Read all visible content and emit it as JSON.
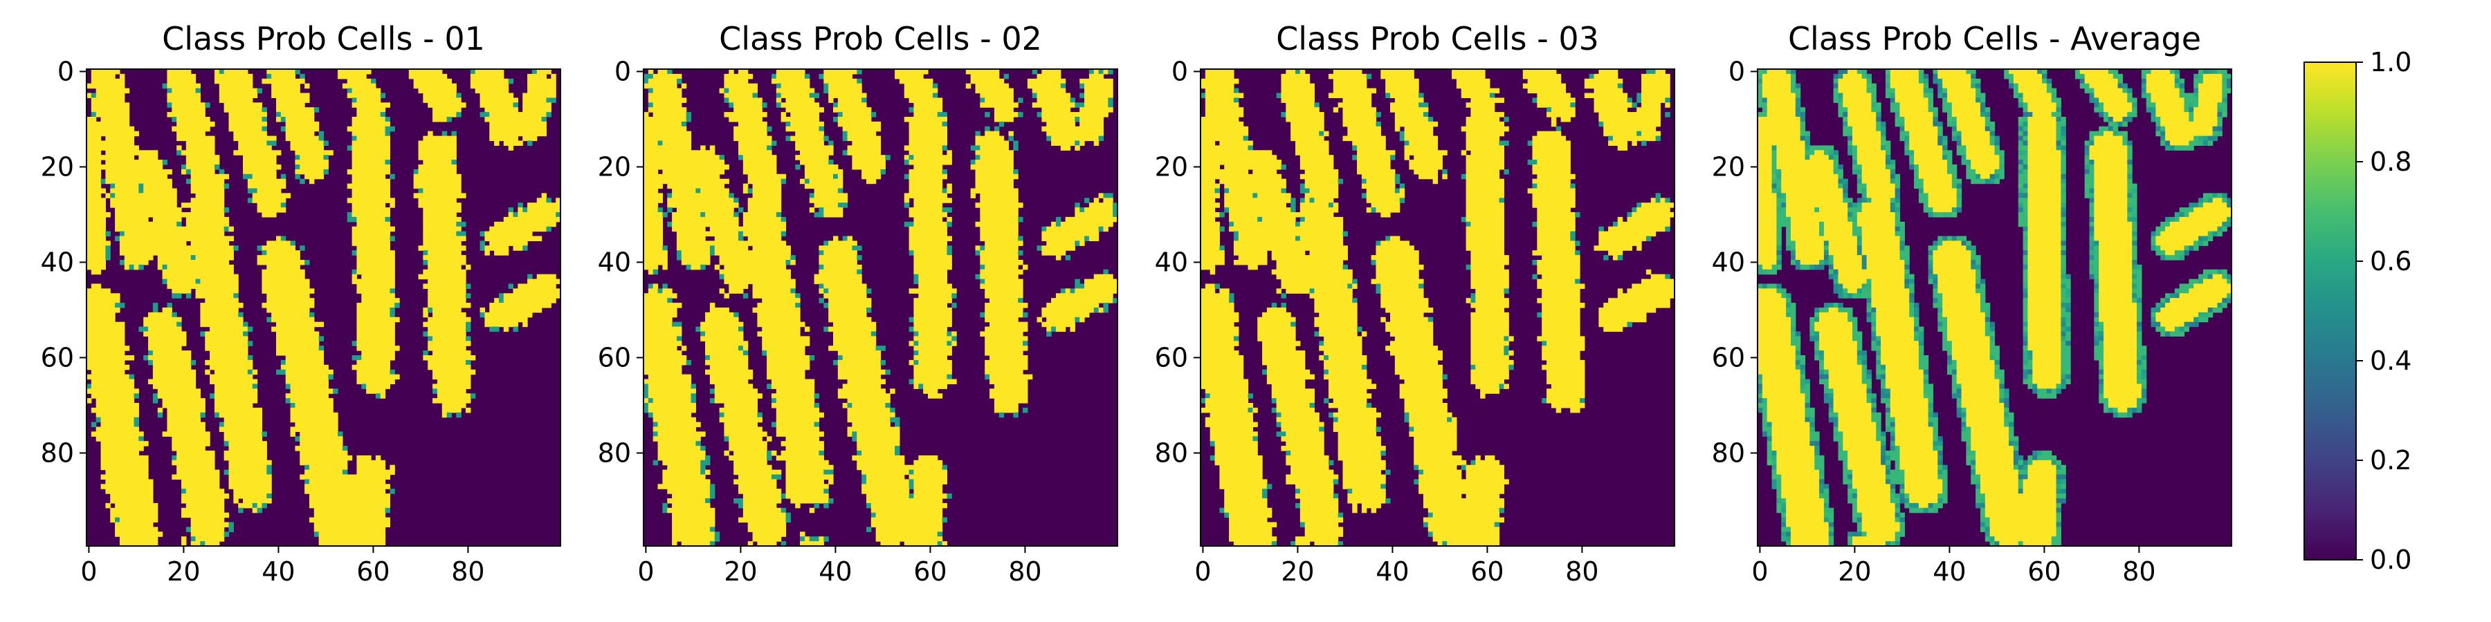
{
  "figure": {
    "colormap": "viridis",
    "colors": {
      "low": "#440154",
      "high": "#fde725",
      "mid_teal": "#21918c",
      "axis": "#000000",
      "background": "#ffffff"
    }
  },
  "chart_data": [
    {
      "type": "heatmap",
      "title": "Class Prob Cells - 01",
      "xlabel": "",
      "ylabel": "",
      "xlim": [
        0,
        100
      ],
      "ylim": [
        100,
        0
      ],
      "x_ticks": [
        "0",
        "20",
        "40",
        "60",
        "80"
      ],
      "y_ticks": [
        "0",
        "20",
        "40",
        "60",
        "80"
      ],
      "grid": false,
      "edge_noise": 0.06,
      "description_values": "binary class probability map: 1.0 inside cell segments, 0.0 background",
      "cells": [
        {
          "x1": 4,
          "y1": 3,
          "x2": 11,
          "y2": 38,
          "r": 3.6
        },
        {
          "x1": 20,
          "y1": 3,
          "x2": 26,
          "y2": 26,
          "r": 3.4
        },
        {
          "x1": 31,
          "y1": 2,
          "x2": 39,
          "y2": 27,
          "r": 3.6
        },
        {
          "x1": 41,
          "y1": 0,
          "x2": 48,
          "y2": 20,
          "r": 3.5
        },
        {
          "x1": 56,
          "y1": 0,
          "x2": 60,
          "y2": 8,
          "r": 3.2
        },
        {
          "x1": 71,
          "y1": 0,
          "x2": 76,
          "y2": 8,
          "r": 3.2
        },
        {
          "x1": 85,
          "y1": 3,
          "x2": 89,
          "y2": 13,
          "r": 3.6
        },
        {
          "x1": 96,
          "y1": 3,
          "x2": 94,
          "y2": 12,
          "r": 3.0
        },
        {
          "x1": 13,
          "y1": 20,
          "x2": 20,
          "y2": 44,
          "r": 3.5
        },
        {
          "x1": 1,
          "y1": 12,
          "x2": 2,
          "y2": 40,
          "r": 2.6
        },
        {
          "x1": 25,
          "y1": 31,
          "x2": 35,
          "y2": 88,
          "r": 4.4
        },
        {
          "x1": 41,
          "y1": 40,
          "x2": 53,
          "y2": 96,
          "r": 4.6
        },
        {
          "x1": 60,
          "y1": 12,
          "x2": 61,
          "y2": 64,
          "r": 4.0
        },
        {
          "x1": 74,
          "y1": 17,
          "x2": 77,
          "y2": 68,
          "r": 4.2
        },
        {
          "x1": 2,
          "y1": 50,
          "x2": 11,
          "y2": 98,
          "r": 4.6
        },
        {
          "x1": 16,
          "y1": 54,
          "x2": 26,
          "y2": 96,
          "r": 4.2
        },
        {
          "x1": 60,
          "y1": 85,
          "x2": 59,
          "y2": 99,
          "r": 4.0
        },
        {
          "x1": 87,
          "y1": 36,
          "x2": 97,
          "y2": 30,
          "r": 3.4
        },
        {
          "x1": 87,
          "y1": 52,
          "x2": 97,
          "y2": 46,
          "r": 3.4
        },
        {
          "x1": 21,
          "y1": 99,
          "x2": 24,
          "y2": 99,
          "r": 1.4
        }
      ]
    },
    {
      "type": "heatmap",
      "title": "Class Prob Cells - 02",
      "xlabel": "",
      "ylabel": "",
      "xlim": [
        0,
        100
      ],
      "ylim": [
        100,
        0
      ],
      "x_ticks": [
        "0",
        "20",
        "40",
        "60",
        "80"
      ],
      "y_ticks": [
        "0",
        "20",
        "40",
        "60",
        "80"
      ],
      "grid": false,
      "edge_noise": 0.07,
      "description_values": "binary class probability map: 1.0 inside cell segments, 0.0 background",
      "cells": [
        {
          "x1": 4,
          "y1": 3,
          "x2": 11,
          "y2": 38,
          "r": 3.6
        },
        {
          "x1": 20,
          "y1": 3,
          "x2": 26,
          "y2": 26,
          "r": 3.4
        },
        {
          "x1": 31,
          "y1": 2,
          "x2": 39,
          "y2": 27,
          "r": 3.6
        },
        {
          "x1": 41,
          "y1": 0,
          "x2": 48,
          "y2": 20,
          "r": 3.5
        },
        {
          "x1": 56,
          "y1": 0,
          "x2": 60,
          "y2": 8,
          "r": 3.2
        },
        {
          "x1": 71,
          "y1": 0,
          "x2": 76,
          "y2": 8,
          "r": 3.2
        },
        {
          "x1": 85,
          "y1": 3,
          "x2": 89,
          "y2": 13,
          "r": 3.6
        },
        {
          "x1": 96,
          "y1": 3,
          "x2": 94,
          "y2": 12,
          "r": 3.0
        },
        {
          "x1": 13,
          "y1": 20,
          "x2": 20,
          "y2": 44,
          "r": 3.5
        },
        {
          "x1": 1,
          "y1": 12,
          "x2": 2,
          "y2": 40,
          "r": 2.6
        },
        {
          "x1": 25,
          "y1": 31,
          "x2": 35,
          "y2": 88,
          "r": 4.4
        },
        {
          "x1": 41,
          "y1": 40,
          "x2": 53,
          "y2": 96,
          "r": 4.6
        },
        {
          "x1": 60,
          "y1": 12,
          "x2": 61,
          "y2": 64,
          "r": 4.0
        },
        {
          "x1": 74,
          "y1": 17,
          "x2": 77,
          "y2": 68,
          "r": 4.2
        },
        {
          "x1": 2,
          "y1": 50,
          "x2": 11,
          "y2": 98,
          "r": 4.6
        },
        {
          "x1": 16,
          "y1": 54,
          "x2": 26,
          "y2": 96,
          "r": 4.2
        },
        {
          "x1": 60,
          "y1": 85,
          "x2": 59,
          "y2": 99,
          "r": 4.0
        },
        {
          "x1": 87,
          "y1": 36,
          "x2": 97,
          "y2": 30,
          "r": 3.4
        },
        {
          "x1": 87,
          "y1": 52,
          "x2": 97,
          "y2": 46,
          "r": 3.4
        },
        {
          "x1": 35,
          "y1": 99,
          "x2": 37,
          "y2": 99,
          "r": 1.4
        }
      ]
    },
    {
      "type": "heatmap",
      "title": "Class Prob Cells - 03",
      "xlabel": "",
      "ylabel": "",
      "xlim": [
        0,
        100
      ],
      "ylim": [
        100,
        0
      ],
      "x_ticks": [
        "0",
        "20",
        "40",
        "60",
        "80"
      ],
      "y_ticks": [
        "0",
        "20",
        "40",
        "60",
        "80"
      ],
      "grid": false,
      "edge_noise": 0.05,
      "description_values": "binary class probability map: 1.0 inside cell segments, 0.0 background",
      "cells": [
        {
          "x1": 4,
          "y1": 3,
          "x2": 11,
          "y2": 38,
          "r": 3.6
        },
        {
          "x1": 20,
          "y1": 3,
          "x2": 26,
          "y2": 26,
          "r": 3.4
        },
        {
          "x1": 31,
          "y1": 2,
          "x2": 39,
          "y2": 27,
          "r": 3.6
        },
        {
          "x1": 41,
          "y1": 0,
          "x2": 48,
          "y2": 20,
          "r": 3.5
        },
        {
          "x1": 56,
          "y1": 0,
          "x2": 60,
          "y2": 8,
          "r": 3.2
        },
        {
          "x1": 71,
          "y1": 0,
          "x2": 76,
          "y2": 8,
          "r": 3.2
        },
        {
          "x1": 85,
          "y1": 3,
          "x2": 89,
          "y2": 13,
          "r": 3.6
        },
        {
          "x1": 96,
          "y1": 3,
          "x2": 94,
          "y2": 12,
          "r": 3.0
        },
        {
          "x1": 13,
          "y1": 20,
          "x2": 20,
          "y2": 44,
          "r": 3.5
        },
        {
          "x1": 1,
          "y1": 12,
          "x2": 2,
          "y2": 40,
          "r": 2.6
        },
        {
          "x1": 25,
          "y1": 31,
          "x2": 35,
          "y2": 88,
          "r": 4.4
        },
        {
          "x1": 41,
          "y1": 40,
          "x2": 53,
          "y2": 96,
          "r": 4.6
        },
        {
          "x1": 60,
          "y1": 12,
          "x2": 61,
          "y2": 64,
          "r": 4.0
        },
        {
          "x1": 74,
          "y1": 17,
          "x2": 77,
          "y2": 68,
          "r": 4.2
        },
        {
          "x1": 2,
          "y1": 50,
          "x2": 11,
          "y2": 98,
          "r": 4.6
        },
        {
          "x1": 16,
          "y1": 54,
          "x2": 26,
          "y2": 96,
          "r": 4.2
        },
        {
          "x1": 60,
          "y1": 85,
          "x2": 59,
          "y2": 99,
          "r": 4.0
        },
        {
          "x1": 87,
          "y1": 36,
          "x2": 97,
          "y2": 30,
          "r": 3.4
        },
        {
          "x1": 87,
          "y1": 52,
          "x2": 97,
          "y2": 46,
          "r": 3.4
        },
        {
          "x1": 21,
          "y1": 99,
          "x2": 24,
          "y2": 99,
          "r": 1.4
        }
      ]
    },
    {
      "type": "heatmap",
      "title": "Class Prob Cells - Average",
      "xlabel": "",
      "ylabel": "",
      "xlim": [
        0,
        100
      ],
      "ylim": [
        100,
        0
      ],
      "x_ticks": [
        "0",
        "20",
        "40",
        "60",
        "80"
      ],
      "y_ticks": [
        "0",
        "20",
        "40",
        "60",
        "80"
      ],
      "grid": false,
      "edge_noise": 0.0,
      "edge_value": 0.67,
      "description_values": "average of the three maps: 1.0 inside, ~0.33-0.67 at cell borders, 0.0 background",
      "cells": [
        {
          "x1": 4,
          "y1": 3,
          "x2": 11,
          "y2": 38,
          "r": 3.6
        },
        {
          "x1": 20,
          "y1": 3,
          "x2": 26,
          "y2": 26,
          "r": 3.4
        },
        {
          "x1": 31,
          "y1": 2,
          "x2": 39,
          "y2": 27,
          "r": 3.6
        },
        {
          "x1": 41,
          "y1": 0,
          "x2": 48,
          "y2": 20,
          "r": 3.5
        },
        {
          "x1": 56,
          "y1": 0,
          "x2": 60,
          "y2": 8,
          "r": 3.2
        },
        {
          "x1": 71,
          "y1": 0,
          "x2": 76,
          "y2": 8,
          "r": 3.2
        },
        {
          "x1": 85,
          "y1": 3,
          "x2": 89,
          "y2": 13,
          "r": 3.6
        },
        {
          "x1": 96,
          "y1": 3,
          "x2": 94,
          "y2": 12,
          "r": 3.0
        },
        {
          "x1": 13,
          "y1": 20,
          "x2": 20,
          "y2": 44,
          "r": 3.5
        },
        {
          "x1": 1,
          "y1": 12,
          "x2": 2,
          "y2": 40,
          "r": 2.6
        },
        {
          "x1": 25,
          "y1": 31,
          "x2": 35,
          "y2": 88,
          "r": 4.4
        },
        {
          "x1": 41,
          "y1": 40,
          "x2": 53,
          "y2": 96,
          "r": 4.6
        },
        {
          "x1": 60,
          "y1": 12,
          "x2": 61,
          "y2": 64,
          "r": 4.0
        },
        {
          "x1": 74,
          "y1": 17,
          "x2": 77,
          "y2": 68,
          "r": 4.2
        },
        {
          "x1": 2,
          "y1": 50,
          "x2": 11,
          "y2": 98,
          "r": 4.6
        },
        {
          "x1": 16,
          "y1": 54,
          "x2": 26,
          "y2": 96,
          "r": 4.2
        },
        {
          "x1": 60,
          "y1": 85,
          "x2": 59,
          "y2": 99,
          "r": 4.0
        },
        {
          "x1": 87,
          "y1": 36,
          "x2": 97,
          "y2": 30,
          "r": 3.4
        },
        {
          "x1": 87,
          "y1": 52,
          "x2": 97,
          "y2": 46,
          "r": 3.4
        },
        {
          "x1": 21,
          "y1": 99,
          "x2": 24,
          "y2": 99,
          "r": 1.4
        }
      ]
    }
  ],
  "colorbar": {
    "ticks": [
      "0.0",
      "0.2",
      "0.4",
      "0.6",
      "0.8",
      "1.0"
    ],
    "range": [
      0.0,
      1.0
    ]
  }
}
